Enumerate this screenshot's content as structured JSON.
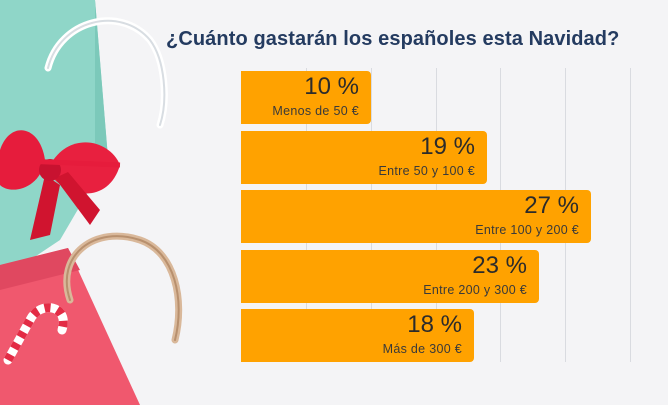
{
  "chart_data": {
    "type": "bar",
    "orientation": "horizontal",
    "title": "¿Cuánto gastarán los españoles esta Navidad?",
    "categories": [
      "Menos de 50 €",
      "Entre 50 y 100 €",
      "Entre 100 y 200 €",
      "Entre 200 y 300 €",
      "Más de 300 €"
    ],
    "values": [
      10,
      19,
      27,
      23,
      18
    ],
    "value_labels": [
      "10 %",
      "19 %",
      "27 %",
      "23 %",
      "18 %"
    ],
    "unit": "%",
    "xlim": [
      0,
      30
    ],
    "gridlines": [
      5,
      10,
      15,
      20,
      25,
      30
    ],
    "bar_color": "#ffa200",
    "title_color": "#243b60"
  }
}
